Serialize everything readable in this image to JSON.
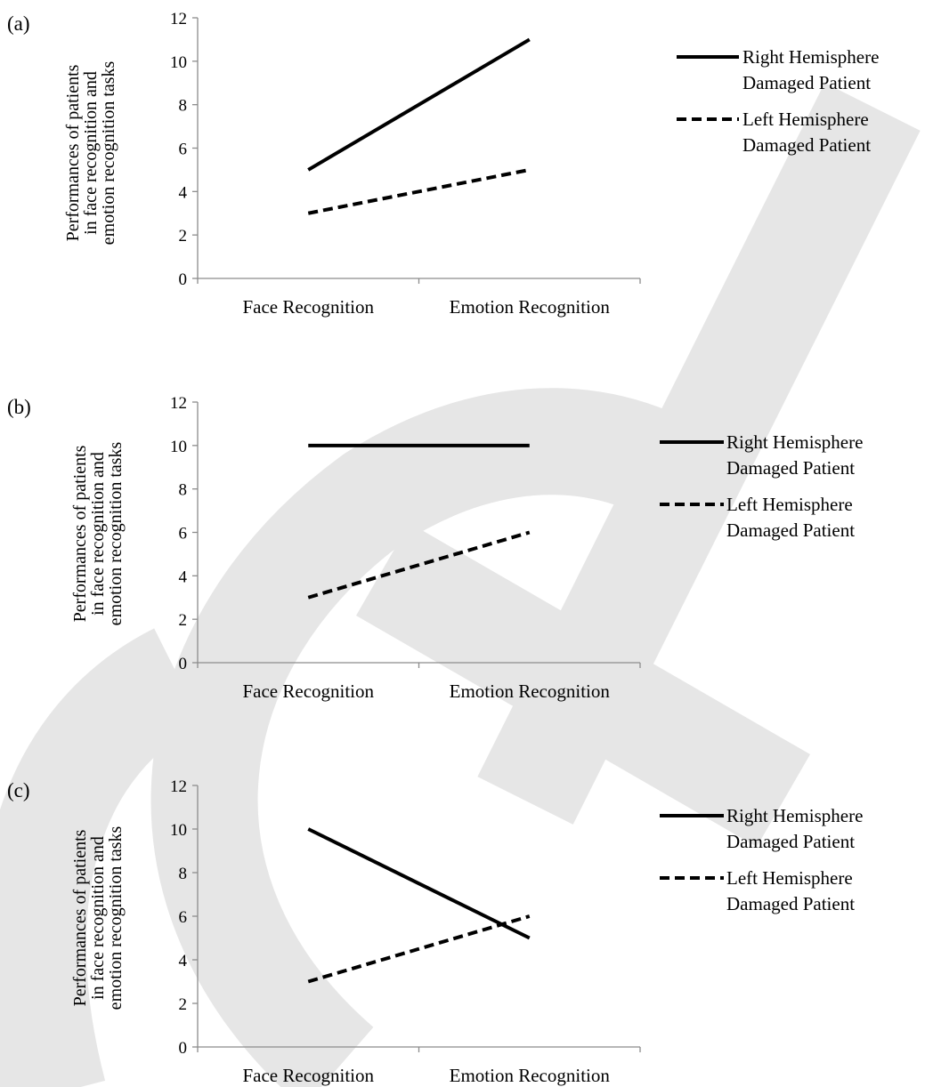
{
  "watermark": {
    "text": "JCRIS",
    "color": "#e6e6e6"
  },
  "chart_data": [
    {
      "type": "line",
      "panel_label": "(a)",
      "title": "",
      "xlabel": "",
      "ylabel_lines": [
        "Performances of patients",
        "in face recognition and",
        "emotion recognition tasks"
      ],
      "categories": [
        "Face Recognition",
        "Emotion Recognition"
      ],
      "ylim": [
        0,
        12
      ],
      "yticks": [
        0,
        2,
        4,
        6,
        8,
        10,
        12
      ],
      "grid": false,
      "legend_position": "right",
      "series": [
        {
          "name_lines": [
            "Right Hemisphere",
            "Damaged Patient"
          ],
          "style": "solid",
          "color": "#000000",
          "values": [
            5,
            11
          ]
        },
        {
          "name_lines": [
            "Left Hemisphere",
            "Damaged Patient"
          ],
          "style": "dashed",
          "color": "#000000",
          "values": [
            3,
            5
          ]
        }
      ]
    },
    {
      "type": "line",
      "panel_label": "(b)",
      "title": "",
      "xlabel": "",
      "ylabel_lines": [
        "Performances of patients",
        "in face recognition and",
        "emotion recognition tasks"
      ],
      "categories": [
        "Face Recognition",
        "Emotion Recognition"
      ],
      "ylim": [
        0,
        12
      ],
      "yticks": [
        0,
        2,
        4,
        6,
        8,
        10,
        12
      ],
      "grid": false,
      "legend_position": "right",
      "series": [
        {
          "name_lines": [
            "Right Hemisphere",
            "Damaged Patient"
          ],
          "style": "solid",
          "color": "#000000",
          "values": [
            10,
            10
          ]
        },
        {
          "name_lines": [
            "Left Hemisphere",
            "Damaged Patient"
          ],
          "style": "dashed",
          "color": "#000000",
          "values": [
            3,
            6
          ]
        }
      ]
    },
    {
      "type": "line",
      "panel_label": "(c)",
      "title": "",
      "xlabel": "",
      "ylabel_lines": [
        "Performances of patients",
        "in face recognition and",
        "emotion recognition tasks"
      ],
      "categories": [
        "Face Recognition",
        "Emotion Recognition"
      ],
      "ylim": [
        0,
        12
      ],
      "yticks": [
        0,
        2,
        4,
        6,
        8,
        10,
        12
      ],
      "grid": false,
      "legend_position": "right",
      "series": [
        {
          "name_lines": [
            "Right Hemisphere",
            "Damaged Patient"
          ],
          "style": "solid",
          "color": "#000000",
          "values": [
            10,
            5
          ]
        },
        {
          "name_lines": [
            "Left Hemisphere",
            "Damaged Patient"
          ],
          "style": "dashed",
          "color": "#000000",
          "values": [
            3,
            6
          ]
        }
      ]
    }
  ]
}
